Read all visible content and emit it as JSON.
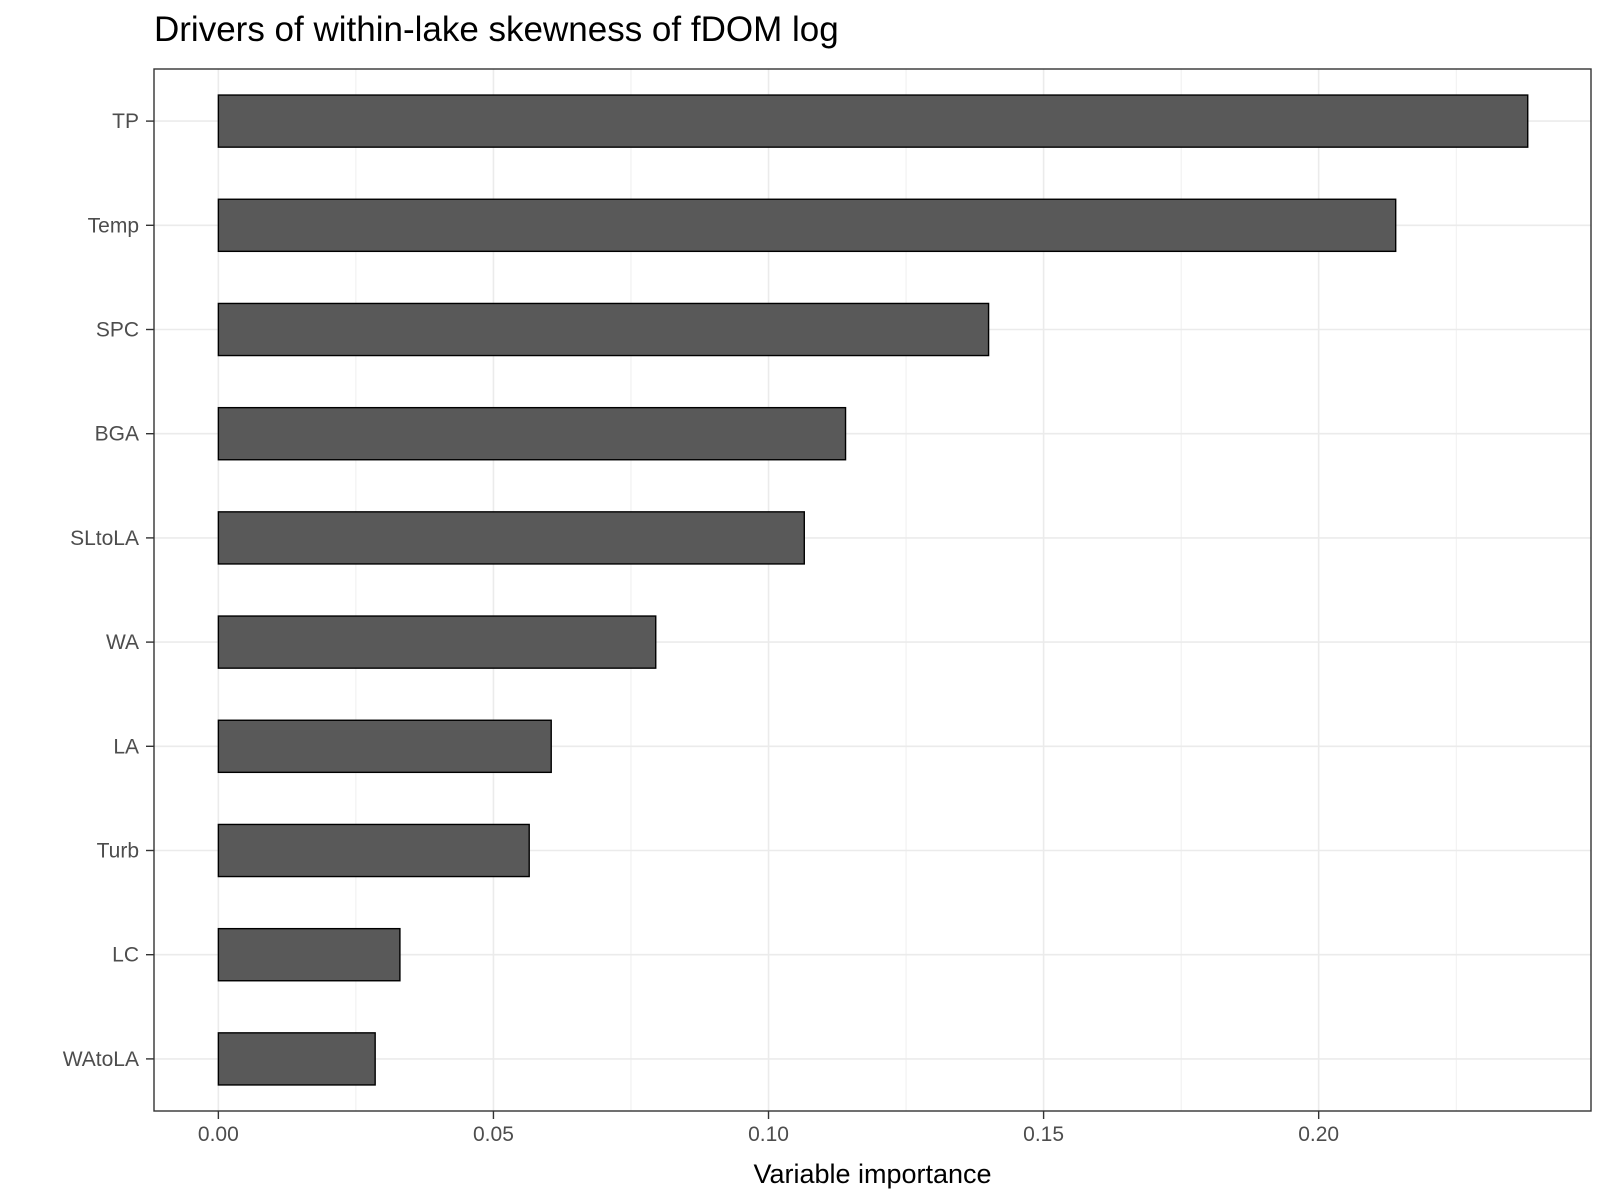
{
  "chart_data": {
    "type": "bar",
    "orientation": "horizontal",
    "title": "Drivers of within-lake skewness of fDOM log",
    "xlabel": "Variable importance",
    "ylabel": "",
    "categories": [
      "TP",
      "Temp",
      "SPC",
      "BGA",
      "SLtoLA",
      "WA",
      "LA",
      "Turb",
      "LC",
      "WAtoLA"
    ],
    "values": [
      0.238,
      0.214,
      0.14,
      0.114,
      0.1065,
      0.0795,
      0.0605,
      0.0565,
      0.033,
      0.0285
    ],
    "xlim": [
      -0.0117,
      0.2495
    ],
    "xticks": [
      0.0,
      0.05,
      0.1,
      0.15,
      0.2
    ],
    "xtick_labels": [
      "0.00",
      "0.05",
      "0.10",
      "0.15",
      "0.20"
    ],
    "grid": true,
    "bar_color": "#595959",
    "bar_outline": "#000000",
    "grid_color": "#ebebeb",
    "panel_border_color": "#333333"
  }
}
